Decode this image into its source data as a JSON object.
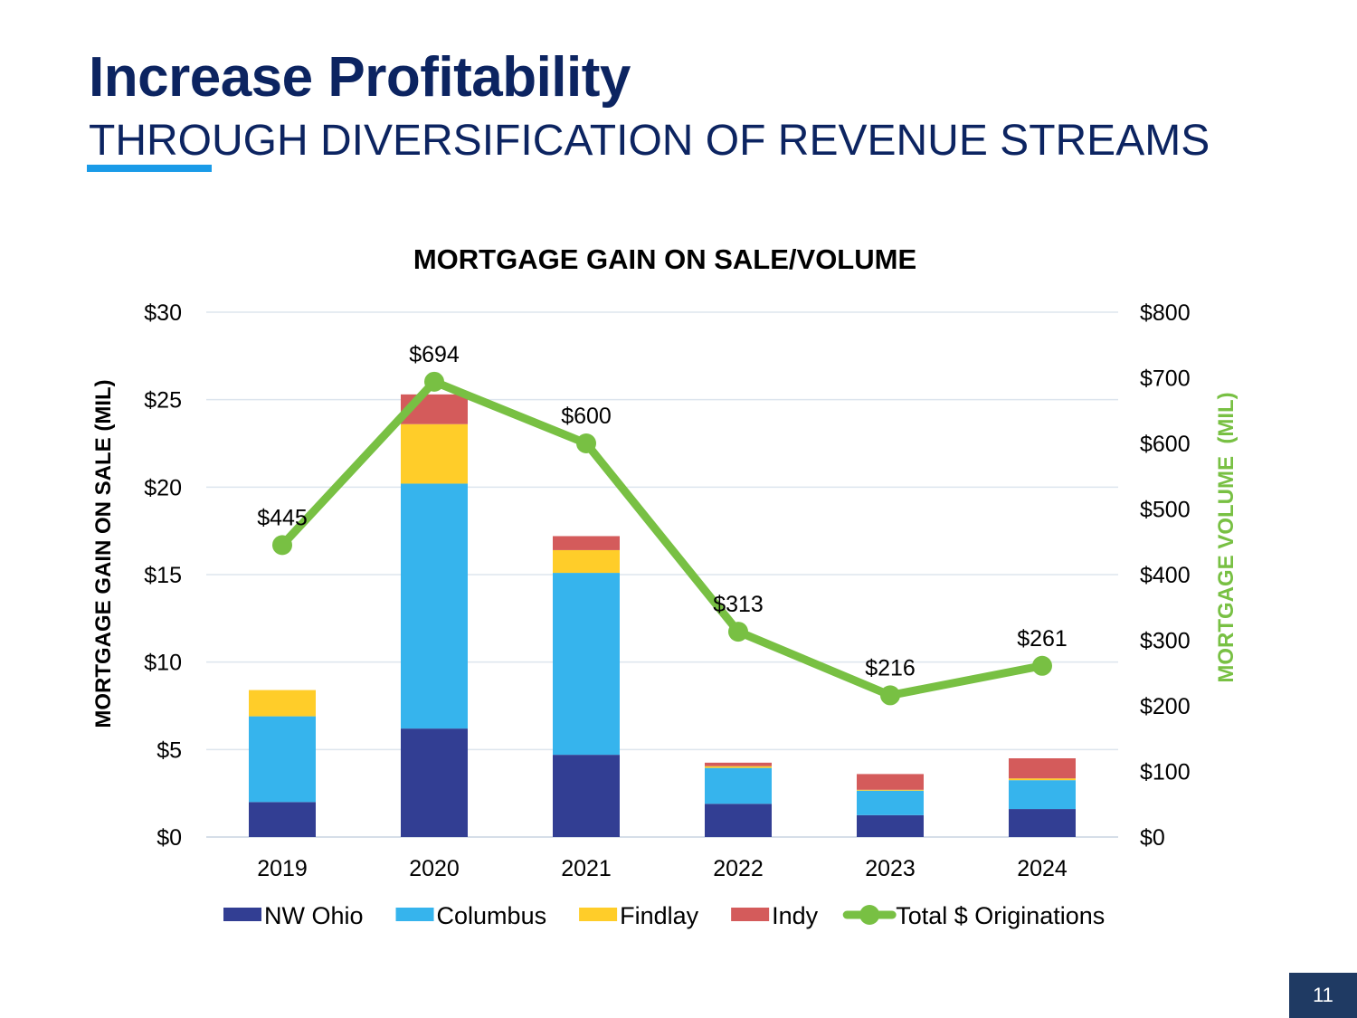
{
  "header": {
    "title": "Increase Profitability",
    "subtitle": "THROUGH DIVERSIFICATION OF REVENUE STREAMS"
  },
  "page_number": "11",
  "chart_data": {
    "type": "bar",
    "title": "MORTGAGE GAIN ON SALE/VOLUME",
    "categories": [
      "2019",
      "2020",
      "2021",
      "2022",
      "2023",
      "2024"
    ],
    "ylabel": "MORTGAGE GAIN ON SALE (MIL)",
    "ylim": [
      0,
      30
    ],
    "yticks": [
      "$0",
      "$5",
      "$10",
      "$15",
      "$20",
      "$25",
      "$30"
    ],
    "y2label": "MORTGAGE VOLUME  (MIL)",
    "y2lim": [
      0,
      800
    ],
    "y2ticks": [
      "$0",
      "$100",
      "$200",
      "$300",
      "$400",
      "$500",
      "$600",
      "$700",
      "$800"
    ],
    "stacked": true,
    "series": [
      {
        "name": "NW Ohio",
        "color": "#323e93",
        "values": [
          2.0,
          6.2,
          4.7,
          1.9,
          1.25,
          1.6
        ]
      },
      {
        "name": "Columbus",
        "color": "#36b4ed",
        "values": [
          4.9,
          14.0,
          10.4,
          2.05,
          1.4,
          1.65
        ]
      },
      {
        "name": "Findlay",
        "color": "#ffcd29",
        "values": [
          1.5,
          3.4,
          1.3,
          0.1,
          0.05,
          0.1
        ]
      },
      {
        "name": "Indy",
        "color": "#d45b5b",
        "values": [
          0,
          1.7,
          0.8,
          0.2,
          0.9,
          1.15
        ]
      }
    ],
    "line": {
      "name": "Total $ Originations",
      "color": "#78c043",
      "axis": "secondary",
      "values": [
        445,
        694,
        600,
        313,
        216,
        261
      ],
      "labels": [
        "$445",
        "$694",
        "$600",
        "$313",
        "$216",
        "$261"
      ]
    },
    "grid": true,
    "legend": "bottom"
  }
}
